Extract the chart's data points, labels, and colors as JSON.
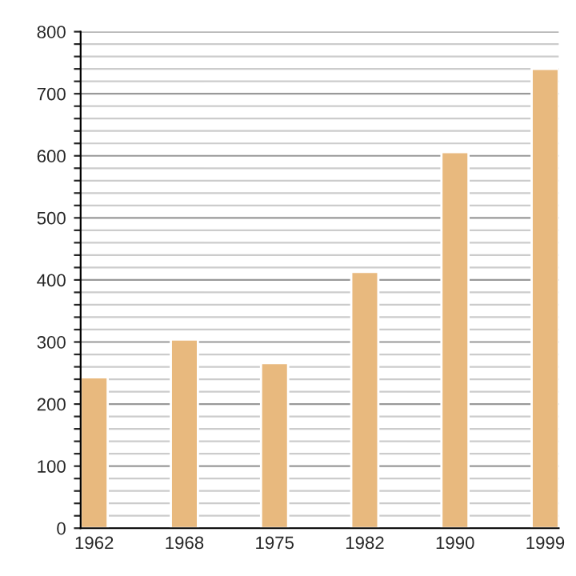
{
  "chart_data": {
    "type": "bar",
    "categories": [
      "1962",
      "1968",
      "1975",
      "1982",
      "1990",
      "1999"
    ],
    "values": [
      243,
      304,
      266,
      413,
      606,
      740
    ],
    "color": "#e8b97e",
    "ylim": [
      0,
      800
    ],
    "yticks": [
      0,
      {
        "value": 20,
        "label": null
      },
      {
        "value": 40,
        "label": null
      },
      {
        "value": 60,
        "label": null
      },
      {
        "value": 80,
        "label": null
      },
      100,
      {
        "value": 120,
        "label": null
      },
      {
        "value": 140,
        "label": null
      },
      {
        "value": 160,
        "label": null
      },
      {
        "value": 180,
        "label": null
      },
      200,
      {
        "value": 220,
        "label": null
      },
      {
        "value": 240,
        "label": null
      },
      {
        "value": 260,
        "label": null
      },
      {
        "value": 280,
        "label": null
      },
      300,
      {
        "value": 320,
        "label": null
      },
      {
        "value": 340,
        "label": null
      },
      {
        "value": 360,
        "label": null
      },
      {
        "value": 380,
        "label": null
      },
      400,
      {
        "value": 420,
        "label": null
      },
      {
        "value": 440,
        "label": null
      },
      {
        "value": 460,
        "label": null
      },
      {
        "value": 480,
        "label": null
      },
      500,
      {
        "value": 520,
        "label": null
      },
      {
        "value": 540,
        "label": null
      },
      {
        "value": 560,
        "label": null
      },
      {
        "value": 580,
        "label": null
      },
      600,
      {
        "value": 620,
        "label": null
      },
      {
        "value": 640,
        "label": null
      },
      {
        "value": 660,
        "label": null
      },
      {
        "value": 680,
        "label": null
      },
      700,
      {
        "value": 720,
        "label": null
      },
      {
        "value": 740,
        "label": null
      },
      {
        "value": 760,
        "label": null
      },
      {
        "value": 780,
        "label": null
      },
      800
    ],
    "grid": "y"
  }
}
